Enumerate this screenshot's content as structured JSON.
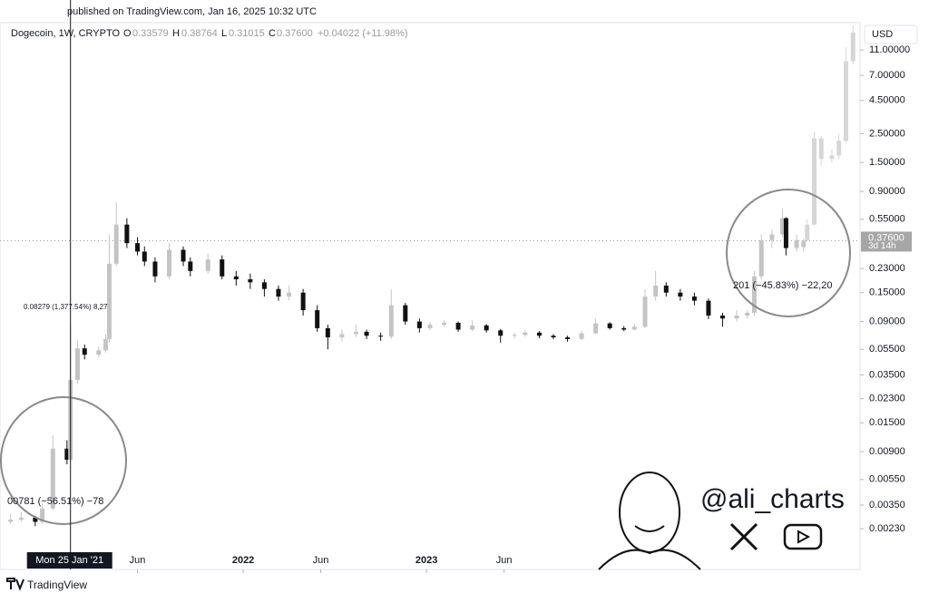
{
  "published": "published on TradingView.com, Jan 16, 2025 10:32 UTC",
  "header": {
    "symbol": "Dogecoin, 1W, CRYPTO",
    "o": "O",
    "open": "0.33579",
    "h": "H",
    "high": "0.38764",
    "l": "L",
    "low": "0.31015",
    "c": "C",
    "close": "0.37600",
    "change": "+0.04022 (+11.98%)"
  },
  "currency": "USD",
  "price_label": {
    "price": "0.37600",
    "countdown": "3d 14h"
  },
  "measures": [
    "0.08279 (1,377.54%) 8,27",
    "00781 (−56.51%) −78",
    "201 (−45.83%) −22,20"
  ],
  "watermark": "@ali_charts",
  "brand": "TradingView",
  "chart_data": {
    "type": "candlestick",
    "log_scale": true,
    "up_color": "#c4c4c4",
    "down_color": "#111111",
    "projection_color": "#d6d6d6",
    "xlim": [
      -17,
      227
    ],
    "ylim": [
      0.00112,
      17.8
    ],
    "xticks": [
      {
        "value": 22,
        "label": "Jun"
      },
      {
        "value": 52,
        "label": "2022"
      },
      {
        "value": 74,
        "label": "Jun"
      },
      {
        "value": 104,
        "label": "2023"
      },
      {
        "value": 126,
        "label": "Jun"
      }
    ],
    "yticks": [
      {
        "value": 11,
        "label": "11.00000"
      },
      {
        "value": 7,
        "label": "7.00000"
      },
      {
        "value": 4.5,
        "label": "4.50000"
      },
      {
        "value": 2.5,
        "label": "2.50000"
      },
      {
        "value": 1.5,
        "label": "1.50000"
      },
      {
        "value": 0.9,
        "label": "0.90000"
      },
      {
        "value": 0.55,
        "label": "0.55000"
      },
      {
        "value": 0.23,
        "label": "0.23000"
      },
      {
        "value": 0.15,
        "label": "0.15000"
      },
      {
        "value": 0.09,
        "label": "0.09000"
      },
      {
        "value": 0.055,
        "label": "0.05500"
      },
      {
        "value": 0.035,
        "label": "0.03500"
      },
      {
        "value": 0.023,
        "label": "0.02300"
      },
      {
        "value": 0.015,
        "label": "0.01500"
      },
      {
        "value": 0.009,
        "label": "0.00900"
      },
      {
        "value": 0.0055,
        "label": "0.00550"
      },
      {
        "value": 0.0035,
        "label": "0.00350"
      },
      {
        "value": 0.0023,
        "label": "0.00230"
      }
    ],
    "crosshair": {
      "x": 3,
      "label": "Mon 25 Jan '21"
    },
    "last_price": 0.376,
    "x": [
      -14,
      -11,
      -7,
      -5,
      -2,
      2,
      3,
      5,
      7,
      11,
      13,
      14,
      16,
      19,
      22,
      24,
      27,
      31,
      35,
      37,
      42,
      46,
      50,
      54,
      58,
      62,
      65,
      69,
      73,
      76,
      80,
      84,
      87,
      91,
      94,
      98,
      102,
      105,
      109,
      113,
      117,
      121,
      125,
      129,
      132,
      136,
      140,
      144,
      148,
      152,
      156,
      160,
      163,
      166,
      169,
      172,
      176,
      180,
      184,
      188,
      192,
      195,
      197,
      199,
      202,
      205,
      206,
      209,
      211
    ],
    "open": [
      0.0026,
      0.0027,
      0.0028,
      0.0026,
      0.0033,
      0.0095,
      0.0078,
      0.032,
      0.056,
      0.05,
      0.054,
      0.066,
      0.25,
      0.5,
      0.36,
      0.31,
      0.26,
      0.2,
      0.32,
      0.26,
      0.22,
      0.27,
      0.2,
      0.19,
      0.18,
      0.16,
      0.14,
      0.15,
      0.11,
      0.08,
      0.068,
      0.072,
      0.075,
      0.07,
      0.069,
      0.12,
      0.09,
      0.08,
      0.085,
      0.088,
      0.078,
      0.084,
      0.077,
      0.07,
      0.071,
      0.074,
      0.07,
      0.068,
      0.066,
      0.073,
      0.087,
      0.08,
      0.078,
      0.082,
      0.14,
      0.17,
      0.15,
      0.14,
      0.13,
      0.1,
      0.095,
      0.1,
      0.105,
      0.2,
      0.38,
      0.42,
      0.56,
      0.33,
      0.33579
    ],
    "high": [
      0.003,
      0.0031,
      0.0029,
      0.0036,
      0.012,
      0.011,
      0.083,
      0.065,
      0.06,
      0.058,
      0.072,
      0.42,
      0.74,
      0.56,
      0.4,
      0.34,
      0.28,
      0.36,
      0.34,
      0.28,
      0.3,
      0.29,
      0.22,
      0.21,
      0.19,
      0.17,
      0.17,
      0.16,
      0.12,
      0.085,
      0.078,
      0.085,
      0.078,
      0.074,
      0.16,
      0.125,
      0.095,
      0.089,
      0.092,
      0.09,
      0.092,
      0.086,
      0.079,
      0.074,
      0.077,
      0.076,
      0.072,
      0.07,
      0.076,
      0.095,
      0.089,
      0.083,
      0.086,
      0.16,
      0.22,
      0.18,
      0.16,
      0.15,
      0.135,
      0.105,
      0.11,
      0.11,
      0.22,
      0.42,
      0.46,
      0.66,
      0.57,
      0.42,
      0.38764
    ],
    "low": [
      0.0025,
      0.0026,
      0.0024,
      0.0025,
      0.0032,
      0.0072,
      0.0075,
      0.03,
      0.046,
      0.048,
      0.052,
      0.062,
      0.24,
      0.33,
      0.29,
      0.24,
      0.18,
      0.19,
      0.24,
      0.2,
      0.21,
      0.19,
      0.17,
      0.16,
      0.14,
      0.13,
      0.13,
      0.1,
      0.075,
      0.055,
      0.063,
      0.068,
      0.066,
      0.064,
      0.066,
      0.085,
      0.074,
      0.077,
      0.082,
      0.075,
      0.076,
      0.074,
      0.062,
      0.067,
      0.069,
      0.067,
      0.066,
      0.063,
      0.065,
      0.072,
      0.078,
      0.076,
      0.077,
      0.08,
      0.13,
      0.14,
      0.13,
      0.12,
      0.094,
      0.082,
      0.09,
      0.095,
      0.1,
      0.19,
      0.33,
      0.4,
      0.29,
      0.31,
      0.31015
    ],
    "close": [
      0.0027,
      0.0028,
      0.0026,
      0.0033,
      0.0095,
      0.0078,
      0.032,
      0.056,
      0.05,
      0.054,
      0.066,
      0.25,
      0.5,
      0.36,
      0.31,
      0.26,
      0.2,
      0.32,
      0.26,
      0.22,
      0.27,
      0.2,
      0.19,
      0.18,
      0.16,
      0.14,
      0.15,
      0.11,
      0.08,
      0.068,
      0.072,
      0.075,
      0.07,
      0.069,
      0.12,
      0.09,
      0.08,
      0.085,
      0.088,
      0.078,
      0.084,
      0.077,
      0.07,
      0.071,
      0.074,
      0.07,
      0.068,
      0.066,
      0.073,
      0.087,
      0.08,
      0.078,
      0.082,
      0.14,
      0.17,
      0.15,
      0.14,
      0.13,
      0.1,
      0.095,
      0.1,
      0.105,
      0.2,
      0.38,
      0.42,
      0.56,
      0.33,
      0.38,
      0.376
    ],
    "projection": {
      "x": [
        212,
        214,
        216,
        219,
        221,
        223,
        225
      ],
      "open": [
        0.38,
        0.5,
        2.3,
        1.6,
        1.7,
        2.2,
        9
      ],
      "high": [
        0.55,
        2.6,
        2.4,
        1.9,
        2.5,
        11.5,
        17
      ],
      "low": [
        0.37,
        0.49,
        1.4,
        1.5,
        1.6,
        2.1,
        8.5
      ],
      "close": [
        0.5,
        2.3,
        1.6,
        1.7,
        2.2,
        9,
        15
      ]
    }
  }
}
